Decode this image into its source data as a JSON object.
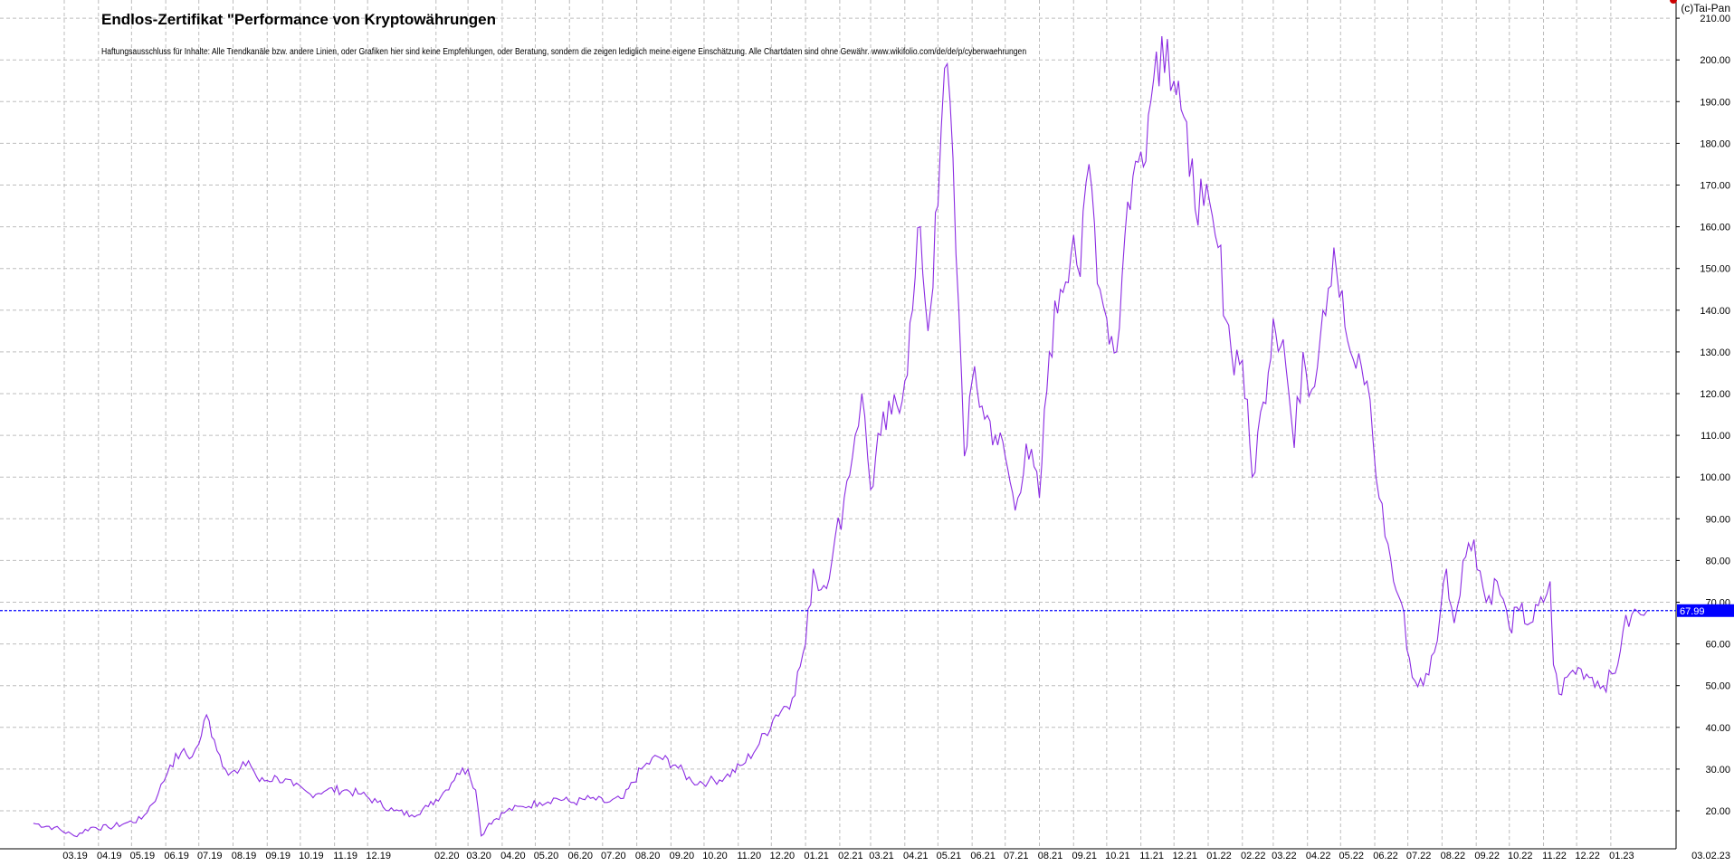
{
  "copyright": "(c)Tai-Pan",
  "chart_data": {
    "type": "line",
    "title": "Endlos-Zertifikat \"Performance von Kryptowährungen",
    "subtitle": "Haftungsausschluss für Inhalte: Alle Trendkanäle bzw. andere Linien, oder Grafiken hier sind keine Empfehlungen, oder Beratung, sondern die zeigen lediglich meine eigene Einschätzung. Alle Chartdaten sind ohne Gewähr. www.wikifolio.com/de/de/p/cyberwaehrungen",
    "xlabel": "",
    "ylabel": "",
    "ylim": [
      10,
      212
    ],
    "y_ticks": [
      20,
      30,
      40,
      50,
      60,
      70,
      80,
      90,
      100,
      110,
      120,
      130,
      140,
      150,
      160,
      170,
      180,
      190,
      200,
      210
    ],
    "y_tick_labels": [
      "20.00",
      "30.00",
      "40.00",
      "50.00",
      "60.00",
      "70.00",
      "80.00",
      "90.00",
      "100.00",
      "110.00",
      "120.00",
      "130.00",
      "140.00",
      "150.00",
      "160.00",
      "170.00",
      "180.00",
      "190.00",
      "200.00",
      "210.00"
    ],
    "x_ticks": [
      "03.19",
      "04.19",
      "05.19",
      "06.19",
      "07.19",
      "08.19",
      "09.19",
      "10.19",
      "11.19",
      "12.19",
      "02.20",
      "03.20",
      "04.20",
      "05.20",
      "06.20",
      "07.20",
      "08.20",
      "09.20",
      "10.20",
      "11.20",
      "12.20",
      "01.21",
      "02.21",
      "03.21",
      "04.21",
      "05.21",
      "06.21",
      "07.21",
      "08.21",
      "09.21",
      "10.21",
      "11.21",
      "12.21",
      "01.22",
      "02.22",
      "03.22",
      "04.22",
      "05.22",
      "06.22",
      "07.22",
      "08.22",
      "09.22",
      "10.22",
      "11.22",
      "12.22",
      "01.23"
    ],
    "x_tick_labels": [
      "03.19",
      "04.19",
      "05.19",
      "06.19",
      "07.19",
      "08.19",
      "09.19",
      "10.19",
      "11.19",
      "12.19",
      "02.20",
      "03.20",
      "04.20",
      "05.20",
      "06.20",
      "07.20",
      "08.20",
      "09.20",
      "10.20",
      "11.20",
      "12.20",
      "01.21",
      "02.21",
      "03.21",
      "04.21",
      "05.21",
      "06.21",
      "07.21",
      "08.21",
      "09.21",
      "10.21",
      "11.21",
      "12.21",
      "01.22",
      "02.22",
      "03.22",
      "04.22",
      "05.22",
      "06.22",
      "07.22",
      "08.22",
      "09.22",
      "10.22",
      "11.22",
      "12.22",
      "01.23"
    ],
    "grid": true,
    "current_date_label": "03.02.23",
    "last_value": 67.99,
    "last_value_label": "67.99",
    "line_color": "#8b2be2",
    "last_value_color": "#0000ff",
    "series": [
      {
        "name": "",
        "x": [
          "2019-02-01",
          "2019-02-20",
          "2019-03-10",
          "2019-03-25",
          "2019-04-10",
          "2019-04-25",
          "2019-05-10",
          "2019-05-25",
          "2019-06-05",
          "2019-06-15",
          "2019-06-25",
          "2019-07-01",
          "2019-07-08",
          "2019-07-15",
          "2019-07-25",
          "2019-08-05",
          "2019-08-15",
          "2019-08-25",
          "2019-09-10",
          "2019-09-25",
          "2019-10-10",
          "2019-10-25",
          "2019-11-10",
          "2019-11-25",
          "2019-12-10",
          "2019-12-25",
          "2020-01-10",
          "2020-01-25",
          "2020-02-10",
          "2020-02-20",
          "2020-03-01",
          "2020-03-08",
          "2020-03-13",
          "2020-03-20",
          "2020-04-05",
          "2020-04-20",
          "2020-05-05",
          "2020-05-20",
          "2020-06-05",
          "2020-06-20",
          "2020-07-05",
          "2020-07-20",
          "2020-08-05",
          "2020-08-20",
          "2020-09-05",
          "2020-09-20",
          "2020-10-05",
          "2020-10-20",
          "2020-11-05",
          "2020-11-20",
          "2020-12-05",
          "2020-12-20",
          "2021-01-01",
          "2021-01-08",
          "2021-01-15",
          "2021-01-25",
          "2021-02-05",
          "2021-02-15",
          "2021-02-21",
          "2021-03-01",
          "2021-03-10",
          "2021-03-20",
          "2021-04-01",
          "2021-04-08",
          "2021-04-15",
          "2021-04-22",
          "2021-05-01",
          "2021-05-07",
          "2021-05-12",
          "2021-05-20",
          "2021-05-25",
          "2021-06-01",
          "2021-06-10",
          "2021-06-22",
          "2021-07-01",
          "2021-07-10",
          "2021-07-20",
          "2021-08-01",
          "2021-08-10",
          "2021-08-20",
          "2021-09-01",
          "2021-09-07",
          "2021-09-15",
          "2021-09-25",
          "2021-10-01",
          "2021-10-10",
          "2021-10-20",
          "2021-11-01",
          "2021-11-10",
          "2021-11-15",
          "2021-11-25",
          "2021-12-01",
          "2021-12-05",
          "2021-12-15",
          "2021-12-28",
          "2022-01-10",
          "2022-01-22",
          "2022-02-01",
          "2022-02-10",
          "2022-02-20",
          "2022-03-01",
          "2022-03-10",
          "2022-03-20",
          "2022-03-28",
          "2022-04-05",
          "2022-04-15",
          "2022-04-25",
          "2022-05-05",
          "2022-05-10",
          "2022-05-15",
          "2022-05-25",
          "2022-06-05",
          "2022-06-13",
          "2022-06-18",
          "2022-06-25",
          "2022-07-05",
          "2022-07-15",
          "2022-07-25",
          "2022-08-05",
          "2022-08-12",
          "2022-08-20",
          "2022-08-30",
          "2022-09-10",
          "2022-09-20",
          "2022-10-01",
          "2022-10-10",
          "2022-10-20",
          "2022-11-01",
          "2022-11-07",
          "2022-11-10",
          "2022-11-15",
          "2022-11-25",
          "2022-12-05",
          "2022-12-15",
          "2022-12-25",
          "2023-01-05",
          "2023-01-12",
          "2023-01-20",
          "2023-01-28",
          "2023-02-03"
        ],
        "values": [
          17,
          16,
          14,
          16,
          16,
          17,
          18,
          24,
          31,
          34,
          33,
          36,
          43,
          37,
          30,
          29,
          32,
          27,
          28,
          26,
          24,
          25,
          25,
          24,
          22,
          20,
          19,
          21,
          25,
          29,
          30,
          25,
          14,
          17,
          20,
          21,
          22,
          23,
          22,
          23,
          22,
          23,
          30,
          33,
          31,
          27,
          27,
          28,
          31,
          36,
          43,
          47,
          60,
          78,
          73,
          80,
          95,
          110,
          120,
          97,
          110,
          115,
          123,
          140,
          160,
          135,
          165,
          198,
          190,
          140,
          105,
          123,
          117,
          110,
          105,
          92,
          108,
          95,
          130,
          145,
          158,
          148,
          175,
          145,
          138,
          130,
          166,
          178,
          190,
          202,
          205,
          195,
          195,
          172,
          165,
          155,
          130,
          128,
          100,
          118,
          138,
          133,
          107,
          130,
          121,
          140,
          155,
          136,
          130,
          126,
          123,
          95,
          84,
          75,
          70,
          52,
          50,
          58,
          78,
          65,
          80,
          85,
          70,
          75,
          64,
          68,
          65,
          70,
          75,
          55,
          48,
          53,
          54,
          52,
          50,
          53,
          63,
          67,
          67,
          67.99
        ]
      }
    ]
  }
}
